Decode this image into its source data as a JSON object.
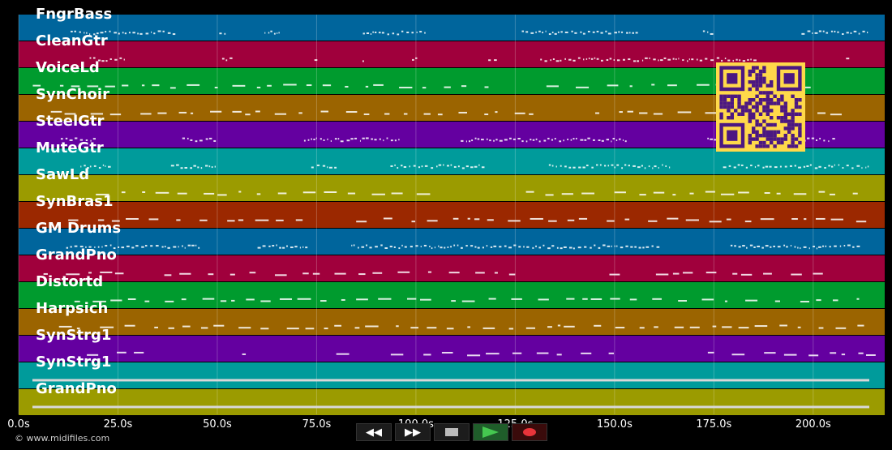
{
  "app": {
    "credit": "© www.midifiles.com"
  },
  "tracks": [
    {
      "name": "FngrBass",
      "color": "#00659c"
    },
    {
      "name": "CleanGtr",
      "color": "#a0003c"
    },
    {
      "name": "VoiceLd",
      "color": "#009b2e"
    },
    {
      "name": "SynChoir",
      "color": "#9b6400"
    },
    {
      "name": "SteelGtr",
      "color": "#6400a0"
    },
    {
      "name": "MuteGtr",
      "color": "#009b9b"
    },
    {
      "name": "SawLd",
      "color": "#9b9b00"
    },
    {
      "name": "SynBras1",
      "color": "#9b2800"
    },
    {
      "name": "GM Drums",
      "color": "#00659c"
    },
    {
      "name": "GrandPno",
      "color": "#a0003c"
    },
    {
      "name": "Distortd",
      "color": "#009b2e"
    },
    {
      "name": "Harpsich",
      "color": "#9b6400"
    },
    {
      "name": "SynStrg1",
      "color": "#6400a0"
    },
    {
      "name": "SynStrg1",
      "color": "#009b9b"
    },
    {
      "name": "GrandPno",
      "color": "#9b9b00"
    }
  ],
  "time_axis": {
    "ticks": [
      "0.0s",
      "25.0s",
      "50.0s",
      "75.0s",
      "100.0s",
      "125.0s",
      "150.0s",
      "175.0s",
      "200.0s"
    ],
    "tick_values": [
      0,
      25,
      50,
      75,
      100,
      125,
      150,
      175,
      200
    ],
    "max_seconds": 218
  },
  "transport": {
    "rewind_icon": "rewind-icon",
    "forward_icon": "fast-forward-icon",
    "stop_icon": "stop-icon",
    "play_icon": "play-icon",
    "record_icon": "record-icon"
  },
  "qr_colors": {
    "fg": "#4b1782",
    "bg": "#ffd94a"
  }
}
